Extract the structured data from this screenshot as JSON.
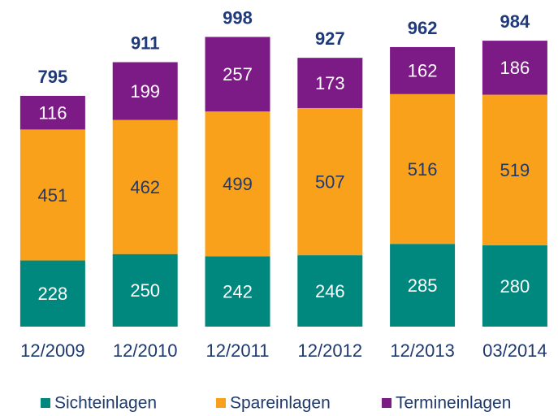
{
  "chart_data": {
    "type": "stacked_bar",
    "categories": [
      "12/2009",
      "12/2010",
      "12/2011",
      "12/2012",
      "12/2013",
      "03/2014"
    ],
    "series": [
      {
        "name": "Sichteinlagen",
        "color": "#00877e",
        "values": [
          228,
          250,
          242,
          246,
          285,
          280
        ]
      },
      {
        "name": "Spareinlagen",
        "color": "#f9a11b",
        "values": [
          451,
          462,
          499,
          507,
          516,
          519
        ]
      },
      {
        "name": "Termineinlagen",
        "color": "#7c1b86",
        "values": [
          116,
          199,
          257,
          173,
          162,
          186
        ]
      }
    ],
    "totals": [
      795,
      911,
      998,
      927,
      962,
      984
    ],
    "ylim": [
      0,
      1100
    ],
    "legend": "bottom"
  }
}
